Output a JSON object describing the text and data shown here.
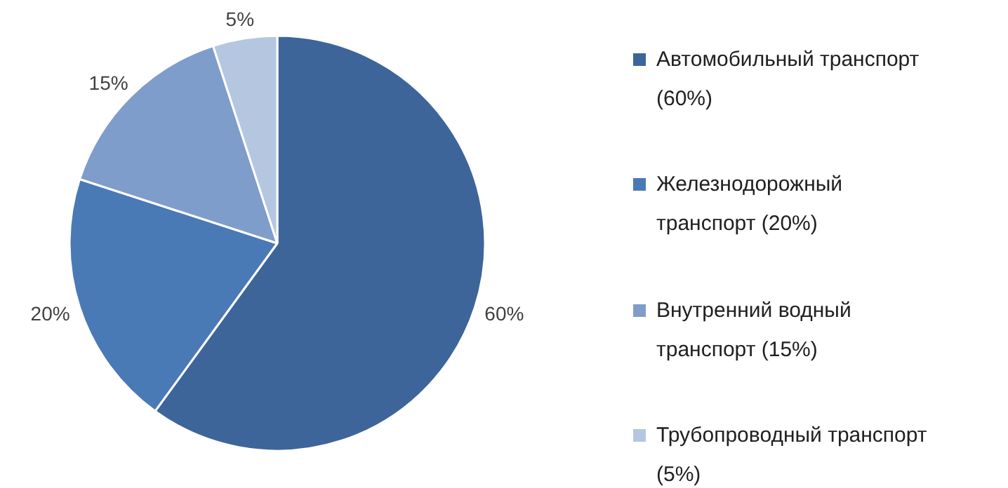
{
  "chart_data": {
    "type": "pie",
    "categories": [
      "Автомобильный транспорт (60%)",
      "Железнодорожный транспорт (20%)",
      "Внутренний водный транспорт (15%)",
      "Трубопроводный транспорт (5%)"
    ],
    "values": [
      60,
      20,
      15,
      5
    ],
    "colors": [
      "#3d6599",
      "#4a7ab5",
      "#7f9dcb",
      "#b5c6e0"
    ],
    "value_labels": [
      "60%",
      "20%",
      "15%",
      "5%"
    ],
    "legend": "right"
  }
}
